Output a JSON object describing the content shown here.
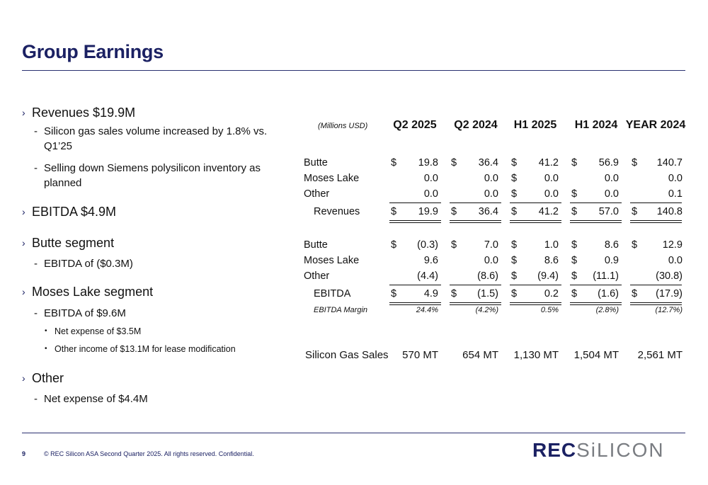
{
  "title": "Group Earnings",
  "bullets": {
    "revenues": "Revenues $19.9M",
    "rev_sub1": "Silicon gas sales volume increased by 1.8% vs. Q1’25",
    "rev_sub2": "Selling down Siemens polysilicon inventory as planned",
    "ebitda": "EBITDA $4.9M",
    "butte": "Butte segment",
    "butte_sub1": "EBITDA of ($0.3M)",
    "moses": "Moses Lake segment",
    "moses_sub1": "EBITDA of $9.6M",
    "moses_sub1a": "Net expense of $3.5M",
    "moses_sub1b": "Other income of $13.1M for lease modification",
    "other": "Other",
    "other_sub1": "Net expense of $4.4M"
  },
  "table": {
    "unit": "(Millions USD)",
    "headers": [
      "Q2 2025",
      "Q2 2024",
      "H1 2025",
      "H1 2024",
      "YEAR 2024"
    ],
    "currency": "$",
    "revenue_rows": [
      {
        "label": "Butte",
        "values": [
          "19.8",
          "36.4",
          "41.2",
          "56.9",
          "140.7"
        ],
        "dollars": [
          true,
          true,
          true,
          true,
          true
        ]
      },
      {
        "label": "Moses Lake",
        "values": [
          "0.0",
          "0.0",
          "0.0",
          "0.0",
          "0.0"
        ],
        "dollars": [
          false,
          false,
          true,
          false,
          false
        ]
      },
      {
        "label": "Other",
        "values": [
          "0.0",
          "0.0",
          "0.0",
          "0.0",
          "0.1"
        ],
        "dollars": [
          false,
          false,
          true,
          true,
          false
        ]
      }
    ],
    "revenue_total": {
      "label": "Revenues",
      "values": [
        "19.9",
        "36.4",
        "41.2",
        "57.0",
        "140.8"
      ]
    },
    "ebitda_rows": [
      {
        "label": "Butte",
        "values": [
          "(0.3)",
          "7.0",
          "1.0",
          "8.6",
          "12.9"
        ],
        "dollars": [
          true,
          true,
          true,
          true,
          true
        ]
      },
      {
        "label": "Moses Lake",
        "values": [
          "9.6",
          "0.0",
          "8.6",
          "0.9",
          "0.0"
        ],
        "dollars": [
          false,
          false,
          true,
          true,
          false
        ]
      },
      {
        "label": "Other",
        "values": [
          "(4.4)",
          "(8.6)",
          "(9.4)",
          "(11.1)",
          "(30.8)"
        ],
        "dollars": [
          false,
          false,
          true,
          true,
          false
        ]
      }
    ],
    "ebitda_total": {
      "label": "EBITDA",
      "values": [
        "4.9",
        "(1.5)",
        "0.2",
        "(1.6)",
        "(17.9)"
      ]
    },
    "margin": {
      "label": "EBITDA Margin",
      "values": [
        "24.4%",
        "(4.2%)",
        "0.5%",
        "(2.8%)",
        "(12.7%)"
      ]
    },
    "gas_sales": {
      "label": "Silicon Gas Sales",
      "values": [
        "570 MT",
        "654 MT",
        "1,130 MT",
        "1,504 MT",
        "2,561 MT"
      ]
    }
  },
  "footer": {
    "page_number": "9",
    "copyright": "©  REC Silicon ASA Second Quarter 2025. All rights reserved. Confidential."
  },
  "logo": {
    "part1": "REC",
    "part2": "SiLICON"
  }
}
